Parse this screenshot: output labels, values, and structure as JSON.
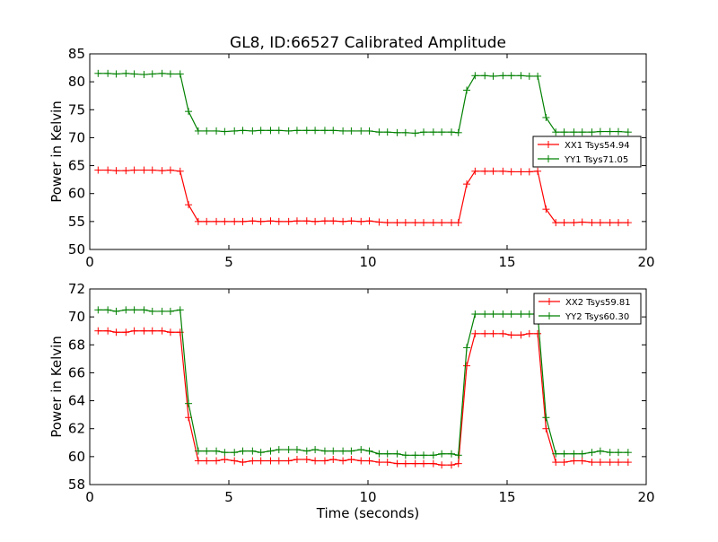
{
  "title": "GL8, ID:66527 Calibrated Amplitude",
  "chart_data": [
    {
      "type": "line",
      "xlabel": "",
      "ylabel": "Power in Kelvin",
      "xlim": [
        0,
        20
      ],
      "ylim": [
        50,
        85
      ],
      "xticks": [
        0,
        5,
        10,
        15,
        20
      ],
      "yticks": [
        50,
        55,
        60,
        65,
        70,
        75,
        80,
        85
      ],
      "legend_position": "center-right",
      "x": [
        0.3,
        0.65,
        0.95,
        1.3,
        1.6,
        1.95,
        2.25,
        2.6,
        2.9,
        3.25,
        3.55,
        3.9,
        4.2,
        4.55,
        4.85,
        5.2,
        5.5,
        5.85,
        6.15,
        6.5,
        6.8,
        7.15,
        7.45,
        7.8,
        8.1,
        8.45,
        8.75,
        9.1,
        9.4,
        9.75,
        10.05,
        10.4,
        10.7,
        11.05,
        11.35,
        11.7,
        12.0,
        12.35,
        12.65,
        13.0,
        13.25,
        13.55,
        13.85,
        14.2,
        14.5,
        14.85,
        15.15,
        15.5,
        15.8,
        16.1,
        16.4,
        16.75,
        17.05,
        17.4,
        17.7,
        18.05,
        18.35,
        18.7,
        19.0,
        19.35
      ],
      "series": [
        {
          "name": "XX1 Tsys54.94",
          "color": "#ff0000",
          "values": [
            64.2,
            64.2,
            64.1,
            64.1,
            64.2,
            64.2,
            64.2,
            64.1,
            64.2,
            64.0,
            58.0,
            55.0,
            55.0,
            55.0,
            55.0,
            55.0,
            55.0,
            55.1,
            55.0,
            55.1,
            55.0,
            55.0,
            55.1,
            55.1,
            55.0,
            55.1,
            55.1,
            55.0,
            55.1,
            55.0,
            55.1,
            54.9,
            54.8,
            54.8,
            54.8,
            54.8,
            54.8,
            54.8,
            54.8,
            54.8,
            54.8,
            61.7,
            64.0,
            64.0,
            64.0,
            64.0,
            63.9,
            63.9,
            63.9,
            64.0,
            57.2,
            54.8,
            54.8,
            54.8,
            54.9,
            54.8,
            54.8,
            54.8,
            54.8,
            54.8
          ]
        },
        {
          "name": "YY1 Tsys71.05",
          "color": "#008000",
          "values": [
            81.5,
            81.5,
            81.4,
            81.5,
            81.4,
            81.3,
            81.4,
            81.5,
            81.4,
            81.4,
            74.7,
            71.2,
            71.2,
            71.2,
            71.1,
            71.2,
            71.3,
            71.2,
            71.3,
            71.3,
            71.3,
            71.2,
            71.3,
            71.3,
            71.3,
            71.3,
            71.3,
            71.2,
            71.2,
            71.2,
            71.2,
            71.0,
            71.0,
            70.9,
            70.9,
            70.8,
            71.0,
            71.0,
            71.0,
            71.0,
            70.9,
            78.5,
            81.1,
            81.1,
            81.0,
            81.1,
            81.1,
            81.1,
            81.0,
            81.0,
            73.6,
            71.0,
            71.0,
            71.0,
            71.0,
            71.0,
            71.1,
            71.1,
            71.1,
            71.0
          ]
        }
      ]
    },
    {
      "type": "line",
      "xlabel": "Time (seconds)",
      "ylabel": "Power in Kelvin",
      "xlim": [
        0,
        20
      ],
      "ylim": [
        58,
        72
      ],
      "xticks": [
        0,
        5,
        10,
        15,
        20
      ],
      "yticks": [
        58,
        60,
        62,
        64,
        66,
        68,
        70,
        72
      ],
      "legend_position": "top-right",
      "x": [
        0.3,
        0.65,
        0.95,
        1.3,
        1.6,
        1.95,
        2.25,
        2.6,
        2.9,
        3.25,
        3.55,
        3.9,
        4.2,
        4.55,
        4.85,
        5.2,
        5.5,
        5.85,
        6.15,
        6.5,
        6.8,
        7.15,
        7.45,
        7.8,
        8.1,
        8.45,
        8.75,
        9.1,
        9.4,
        9.75,
        10.05,
        10.4,
        10.7,
        11.05,
        11.35,
        11.7,
        12.0,
        12.35,
        12.65,
        13.0,
        13.25,
        13.55,
        13.85,
        14.2,
        14.5,
        14.85,
        15.15,
        15.5,
        15.8,
        16.1,
        16.4,
        16.75,
        17.05,
        17.4,
        17.7,
        18.05,
        18.35,
        18.7,
        19.0,
        19.35
      ],
      "series": [
        {
          "name": "XX2 Tsys59.81",
          "color": "#ff0000",
          "values": [
            69.0,
            69.0,
            68.9,
            68.9,
            69.0,
            69.0,
            69.0,
            69.0,
            68.9,
            68.9,
            62.8,
            59.7,
            59.7,
            59.7,
            59.8,
            59.7,
            59.6,
            59.7,
            59.7,
            59.7,
            59.7,
            59.7,
            59.8,
            59.8,
            59.7,
            59.7,
            59.8,
            59.7,
            59.8,
            59.7,
            59.7,
            59.6,
            59.6,
            59.5,
            59.5,
            59.5,
            59.5,
            59.5,
            59.4,
            59.4,
            59.5,
            66.5,
            68.8,
            68.8,
            68.8,
            68.8,
            68.7,
            68.7,
            68.8,
            68.8,
            62.0,
            59.6,
            59.6,
            59.7,
            59.7,
            59.6,
            59.6,
            59.6,
            59.6,
            59.6
          ]
        },
        {
          "name": "YY2 Tsys60.30",
          "color": "#008000",
          "values": [
            70.5,
            70.5,
            70.4,
            70.5,
            70.5,
            70.5,
            70.4,
            70.4,
            70.4,
            70.5,
            63.8,
            60.4,
            60.4,
            60.4,
            60.3,
            60.3,
            60.4,
            60.4,
            60.3,
            60.4,
            60.5,
            60.5,
            60.5,
            60.4,
            60.5,
            60.4,
            60.4,
            60.4,
            60.4,
            60.5,
            60.4,
            60.2,
            60.2,
            60.2,
            60.1,
            60.1,
            60.1,
            60.1,
            60.2,
            60.2,
            60.1,
            67.8,
            70.2,
            70.2,
            70.2,
            70.2,
            70.2,
            70.2,
            70.2,
            70.2,
            62.8,
            60.2,
            60.2,
            60.2,
            60.2,
            60.3,
            60.4,
            60.3,
            60.3,
            60.3
          ]
        }
      ]
    }
  ]
}
